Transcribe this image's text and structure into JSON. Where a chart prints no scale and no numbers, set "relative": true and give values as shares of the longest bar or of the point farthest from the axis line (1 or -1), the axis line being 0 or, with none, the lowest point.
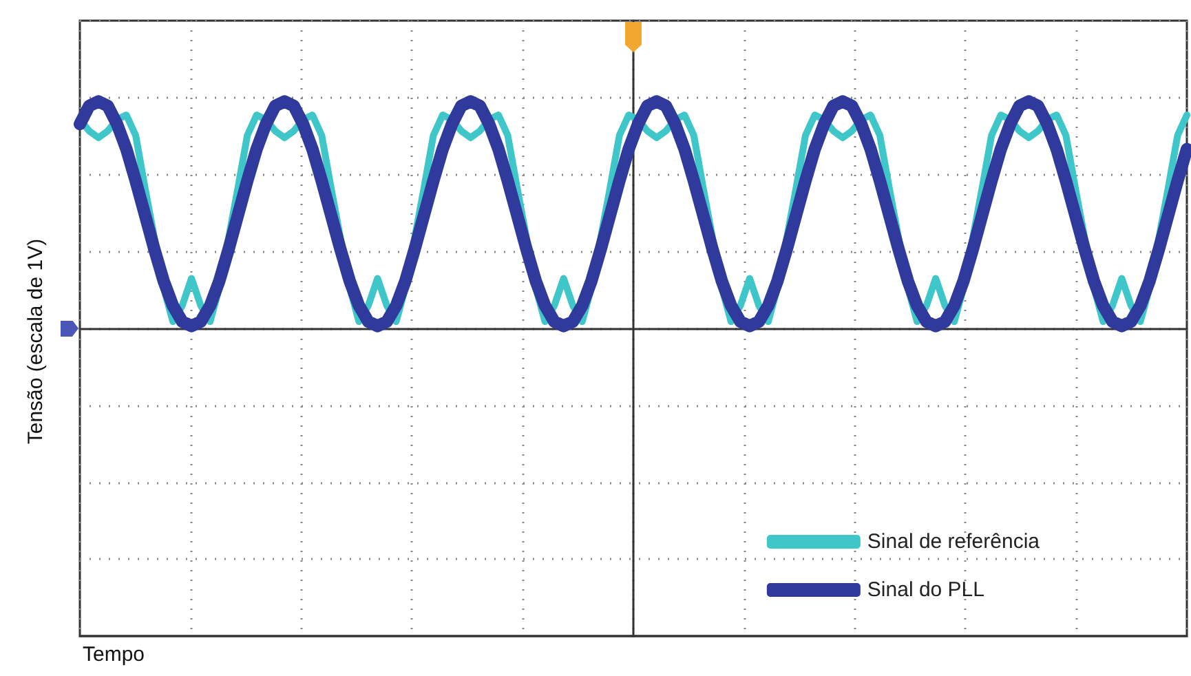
{
  "chart_data": {
    "type": "line",
    "relative": true,
    "annotations": [
      "Tempo"
    ],
    "ylabel": "Tensão (escala de 1V)",
    "categories": [
      null,
      null,
      null,
      null,
      null,
      null,
      null,
      null,
      null,
      null,
      null,
      null,
      null,
      null,
      null,
      null,
      null,
      null,
      null,
      null,
      null,
      null,
      null,
      null,
      null,
      null,
      null,
      null,
      null,
      null,
      null,
      null,
      null,
      null,
      null,
      null,
      null,
      null,
      null,
      null,
      null,
      null,
      null,
      null,
      null,
      null,
      null,
      null,
      null,
      null,
      null,
      null,
      null,
      null,
      null,
      null,
      null,
      null,
      null,
      null,
      null,
      null,
      null,
      null,
      null,
      null,
      null,
      null,
      null,
      null,
      null,
      null,
      null,
      null,
      null,
      null,
      null,
      null,
      null,
      null,
      null,
      null,
      null,
      null,
      null,
      null,
      null,
      null,
      null,
      null,
      null,
      null,
      null,
      null,
      null,
      null,
      null,
      null,
      null,
      null,
      null,
      null,
      null,
      null,
      null,
      null,
      null,
      null,
      null,
      null,
      null,
      null,
      null,
      null,
      null,
      null,
      null,
      null,
      null,
      null
    ],
    "series": [
      {
        "name": "Sinal de referência",
        "color": "#3ec6c9",
        "values": [
          0.92,
          0.87,
          0.84,
          0.87,
          0.92,
          0.94,
          0.85,
          0.62,
          0.4,
          0.18,
          0.03,
          0.1,
          0.22,
          0.1,
          0.03,
          0.18,
          0.4,
          0.62,
          0.85,
          0.94,
          0.92,
          0.87,
          0.84,
          0.87,
          0.92,
          0.94,
          0.85,
          0.62,
          0.4,
          0.18,
          0.03,
          0.1,
          0.22,
          0.1,
          0.03,
          0.18,
          0.4,
          0.62,
          0.85,
          0.94,
          0.92,
          0.87,
          0.84,
          0.87,
          0.92,
          0.94,
          0.85,
          0.62,
          0.4,
          0.18,
          0.03,
          0.1,
          0.22,
          0.1,
          0.03,
          0.18,
          0.4,
          0.62,
          0.85,
          0.94,
          0.92,
          0.87,
          0.84,
          0.87,
          0.92,
          0.94,
          0.85,
          0.62,
          0.4,
          0.18,
          0.03,
          0.1,
          0.22,
          0.1,
          0.03,
          0.18,
          0.4,
          0.62,
          0.85,
          0.94,
          0.92,
          0.87,
          0.84,
          0.87,
          0.92,
          0.94,
          0.85,
          0.62,
          0.4,
          0.18,
          0.03,
          0.1,
          0.22,
          0.1,
          0.03,
          0.18,
          0.4,
          0.62,
          0.85,
          0.94,
          0.92,
          0.87,
          0.84,
          0.87,
          0.92,
          0.94,
          0.85,
          0.62,
          0.4,
          0.18,
          0.03,
          0.1,
          0.22,
          0.1,
          0.03,
          0.18,
          0.4,
          0.62,
          0.85,
          0.94
        ]
      },
      {
        "name": "Sinal do PLL",
        "color": "#2f3a9c",
        "values": [
          0.9,
          0.98,
          1,
          0.98,
          0.9,
          0.79,
          0.65,
          0.5,
          0.35,
          0.21,
          0.1,
          0.03,
          0.01,
          0.03,
          0.1,
          0.21,
          0.35,
          0.5,
          0.65,
          0.79,
          0.9,
          0.98,
          1,
          0.98,
          0.9,
          0.79,
          0.65,
          0.5,
          0.35,
          0.21,
          0.1,
          0.03,
          0.01,
          0.03,
          0.1,
          0.21,
          0.35,
          0.5,
          0.65,
          0.79,
          0.9,
          0.98,
          1,
          0.98,
          0.9,
          0.79,
          0.65,
          0.5,
          0.35,
          0.21,
          0.1,
          0.03,
          0.01,
          0.03,
          0.1,
          0.21,
          0.35,
          0.5,
          0.65,
          0.79,
          0.9,
          0.98,
          1,
          0.98,
          0.9,
          0.79,
          0.65,
          0.5,
          0.35,
          0.21,
          0.1,
          0.03,
          0.01,
          0.03,
          0.1,
          0.21,
          0.35,
          0.5,
          0.65,
          0.79,
          0.9,
          0.98,
          1,
          0.98,
          0.9,
          0.79,
          0.65,
          0.5,
          0.35,
          0.21,
          0.1,
          0.03,
          0.01,
          0.03,
          0.1,
          0.21,
          0.35,
          0.5,
          0.65,
          0.79,
          0.9,
          0.98,
          1,
          0.98,
          0.9,
          0.79,
          0.65,
          0.5,
          0.35,
          0.21,
          0.1,
          0.03,
          0.01,
          0.03,
          0.1,
          0.21,
          0.35,
          0.5,
          0.65,
          0.79
        ]
      }
    ],
    "grid": true,
    "legend": "bottom right",
    "marker": "none",
    "line_style": "solid"
  }
}
